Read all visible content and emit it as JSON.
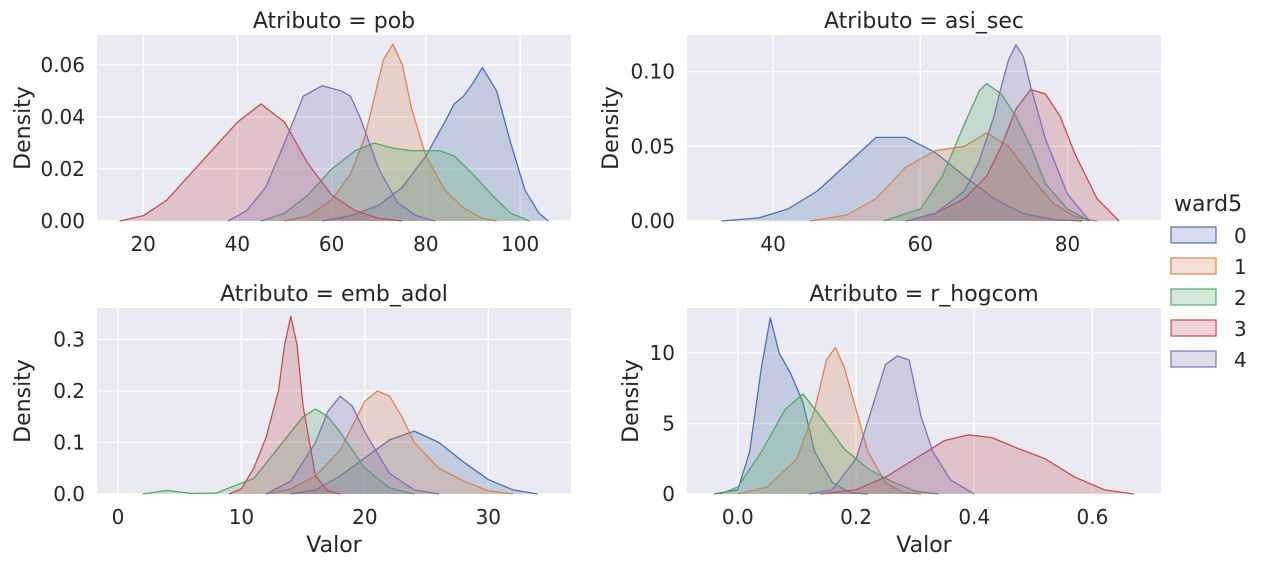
{
  "figure": {
    "legend_title": "ward5",
    "groups": [
      "0",
      "1",
      "2",
      "3",
      "4"
    ],
    "colors": [
      "#4c72b0",
      "#dd8452",
      "#55a868",
      "#c44e52",
      "#8172b3"
    ]
  },
  "chart_data": [
    {
      "type": "area",
      "kind": "kde",
      "title": "Atributo = pob",
      "xlabel": "",
      "ylabel": "Density",
      "xlim": [
        10.2,
        110.8
      ],
      "ylim": [
        0,
        0.0715
      ],
      "xticks": [
        20,
        40,
        60,
        80,
        100
      ],
      "xtick_labels": [
        "20",
        "40",
        "60",
        "80",
        "100"
      ],
      "yticks": [
        0,
        0.02,
        0.04,
        0.06
      ],
      "ytick_labels": [
        "0.00",
        "0.02",
        "0.04",
        "0.06"
      ],
      "series": [
        {
          "name": "0",
          "x": [
            58,
            64,
            70,
            75,
            80,
            84,
            86,
            88,
            90,
            92,
            95,
            98,
            101,
            104,
            106
          ],
          "y": [
            0,
            0.002,
            0.006,
            0.013,
            0.025,
            0.038,
            0.045,
            0.048,
            0.053,
            0.059,
            0.05,
            0.03,
            0.012,
            0.003,
            0
          ]
        },
        {
          "name": "1",
          "x": [
            50,
            55,
            60,
            64,
            67,
            69,
            71,
            73,
            75,
            77,
            80,
            84,
            88,
            92,
            95
          ],
          "y": [
            0,
            0.002,
            0.008,
            0.018,
            0.032,
            0.047,
            0.062,
            0.068,
            0.06,
            0.043,
            0.025,
            0.012,
            0.005,
            0.001,
            0
          ]
        },
        {
          "name": "2",
          "x": [
            45,
            50,
            55,
            60,
            65,
            69,
            73,
            77,
            80,
            83,
            86,
            90,
            94,
            98,
            102
          ],
          "y": [
            0,
            0.003,
            0.01,
            0.02,
            0.027,
            0.03,
            0.028,
            0.027,
            0.027,
            0.027,
            0.025,
            0.018,
            0.01,
            0.003,
            0
          ]
        },
        {
          "name": "3",
          "x": [
            15,
            20,
            25,
            30,
            35,
            40,
            45,
            50,
            55,
            60,
            65,
            70,
            75
          ],
          "y": [
            0,
            0.002,
            0.008,
            0.018,
            0.028,
            0.038,
            0.045,
            0.038,
            0.022,
            0.01,
            0.004,
            0.001,
            0
          ]
        },
        {
          "name": "4",
          "x": [
            38,
            42,
            46,
            50,
            54,
            58,
            62,
            64,
            66,
            70,
            74,
            78,
            82
          ],
          "y": [
            0,
            0.004,
            0.013,
            0.03,
            0.048,
            0.052,
            0.05,
            0.048,
            0.04,
            0.02,
            0.007,
            0.002,
            0
          ]
        }
      ]
    },
    {
      "type": "area",
      "kind": "kde",
      "title": "Atributo = asi_sec",
      "xlabel": "",
      "ylabel": "Density",
      "xlim": [
        28.3,
        92.7
      ],
      "ylim": [
        0,
        0.1245
      ],
      "xticks": [
        40,
        60,
        80
      ],
      "xtick_labels": [
        "40",
        "60",
        "80"
      ],
      "yticks": [
        0,
        0.05,
        0.1
      ],
      "ytick_labels": [
        "0.00",
        "0.05",
        "0.10"
      ],
      "series": [
        {
          "name": "0",
          "x": [
            33,
            38,
            42,
            46,
            50,
            54,
            58,
            62,
            66,
            70,
            74,
            78,
            82
          ],
          "y": [
            0,
            0.002,
            0.008,
            0.02,
            0.038,
            0.056,
            0.056,
            0.046,
            0.03,
            0.015,
            0.005,
            0.001,
            0
          ]
        },
        {
          "name": "1",
          "x": [
            45,
            50,
            54,
            58,
            62,
            66,
            69,
            72,
            75,
            78,
            81,
            84
          ],
          "y": [
            0,
            0.004,
            0.015,
            0.036,
            0.047,
            0.05,
            0.059,
            0.05,
            0.03,
            0.012,
            0.003,
            0
          ]
        },
        {
          "name": "2",
          "x": [
            55,
            60,
            63,
            66,
            68,
            69,
            71,
            73,
            75,
            77,
            80,
            83
          ],
          "y": [
            0,
            0.008,
            0.03,
            0.065,
            0.087,
            0.092,
            0.085,
            0.07,
            0.05,
            0.025,
            0.008,
            0
          ]
        },
        {
          "name": "3",
          "x": [
            58,
            62,
            66,
            69,
            71,
            73,
            75,
            77,
            79,
            81,
            84,
            87
          ],
          "y": [
            0,
            0.005,
            0.015,
            0.03,
            0.05,
            0.075,
            0.088,
            0.085,
            0.07,
            0.045,
            0.015,
            0
          ]
        },
        {
          "name": "4",
          "x": [
            58,
            62,
            66,
            68,
            70,
            71,
            72,
            73,
            74,
            75,
            77,
            80,
            83
          ],
          "y": [
            0,
            0.005,
            0.02,
            0.04,
            0.07,
            0.09,
            0.108,
            0.118,
            0.11,
            0.09,
            0.055,
            0.018,
            0
          ]
        }
      ]
    },
    {
      "type": "area",
      "kind": "kde",
      "title": "Atributo = emb_adol",
      "xlabel": "Valor",
      "ylabel": "Density",
      "xlim": [
        -1.7,
        36.7
      ],
      "ylim": [
        0,
        0.361
      ],
      "xticks": [
        0,
        10,
        20,
        30
      ],
      "xtick_labels": [
        "0",
        "10",
        "20",
        "30"
      ],
      "yticks": [
        0,
        0.1,
        0.2,
        0.3
      ],
      "ytick_labels": [
        "0.0",
        "0.1",
        "0.2",
        "0.3"
      ],
      "series": [
        {
          "name": "0",
          "x": [
            14,
            16,
            18,
            20,
            22,
            24,
            26,
            28,
            30,
            32,
            34
          ],
          "y": [
            0,
            0.008,
            0.035,
            0.07,
            0.105,
            0.122,
            0.1,
            0.062,
            0.028,
            0.008,
            0
          ]
        },
        {
          "name": "1",
          "x": [
            12,
            14,
            16,
            18,
            20,
            21,
            22,
            23,
            24,
            26,
            28,
            30,
            32
          ],
          "y": [
            0,
            0.01,
            0.035,
            0.085,
            0.18,
            0.2,
            0.19,
            0.15,
            0.1,
            0.05,
            0.025,
            0.006,
            0
          ]
        },
        {
          "name": "2",
          "x": [
            2,
            4,
            6,
            8,
            9,
            11,
            13,
            15,
            16,
            17,
            18,
            20,
            22,
            24
          ],
          "y": [
            0,
            0.007,
            0.001,
            0.002,
            0.012,
            0.03,
            0.09,
            0.15,
            0.165,
            0.15,
            0.12,
            0.05,
            0.012,
            0
          ]
        },
        {
          "name": "3",
          "x": [
            9,
            10,
            11,
            12,
            13,
            13.5,
            14,
            14.5,
            15,
            16,
            17,
            18
          ],
          "y": [
            0,
            0.01,
            0.05,
            0.11,
            0.2,
            0.29,
            0.345,
            0.29,
            0.17,
            0.035,
            0.006,
            0
          ]
        },
        {
          "name": "4",
          "x": [
            12,
            14,
            16,
            17,
            18,
            19,
            20,
            22,
            24,
            26
          ],
          "y": [
            0,
            0.025,
            0.1,
            0.16,
            0.19,
            0.17,
            0.12,
            0.04,
            0.008,
            0
          ]
        }
      ]
    },
    {
      "type": "area",
      "kind": "kde",
      "title": "Atributo = r_hogcom",
      "xlabel": "Valor",
      "ylabel": "Density",
      "xlim": [
        -0.086,
        0.716
      ],
      "ylim": [
        0,
        13.2
      ],
      "xticks": [
        0,
        0.2,
        0.4,
        0.6
      ],
      "xtick_labels": [
        "0.0",
        "0.2",
        "0.4",
        "0.6"
      ],
      "yticks": [
        0,
        5,
        10
      ],
      "ytick_labels": [
        "0",
        "5",
        "10"
      ],
      "series": [
        {
          "name": "0",
          "x": [
            -0.04,
            0,
            0.02,
            0.04,
            0.055,
            0.07,
            0.09,
            0.11,
            0.13,
            0.16,
            0.19,
            0.22
          ],
          "y": [
            0,
            0.3,
            3,
            9,
            12.5,
            10,
            8.5,
            6.5,
            3,
            0.8,
            0.1,
            0
          ]
        },
        {
          "name": "1",
          "x": [
            0,
            0.05,
            0.1,
            0.13,
            0.15,
            0.165,
            0.18,
            0.2,
            0.22,
            0.25,
            0.28,
            0.31
          ],
          "y": [
            0,
            0.5,
            2.5,
            6,
            9.5,
            10.4,
            9,
            6,
            3,
            0.8,
            0.1,
            0
          ]
        },
        {
          "name": "2",
          "x": [
            -0.03,
            0,
            0.04,
            0.08,
            0.11,
            0.14,
            0.18,
            0.22,
            0.26,
            0.3,
            0.34
          ],
          "y": [
            0,
            0.5,
            3,
            6,
            7.1,
            5.5,
            3.2,
            1.8,
            0.9,
            0.2,
            0
          ]
        },
        {
          "name": "3",
          "x": [
            0.14,
            0.2,
            0.25,
            0.3,
            0.35,
            0.39,
            0.43,
            0.47,
            0.52,
            0.57,
            0.62,
            0.67
          ],
          "y": [
            0,
            0.3,
            1.2,
            2.5,
            3.8,
            4.2,
            4,
            3.3,
            2.5,
            1.2,
            0.3,
            0
          ]
        },
        {
          "name": "4",
          "x": [
            0.12,
            0.16,
            0.2,
            0.23,
            0.25,
            0.27,
            0.29,
            0.31,
            0.33,
            0.36,
            0.4
          ],
          "y": [
            0,
            0.3,
            2.5,
            6.5,
            9.2,
            9.8,
            9.5,
            5.5,
            3,
            1,
            0
          ]
        }
      ]
    }
  ]
}
